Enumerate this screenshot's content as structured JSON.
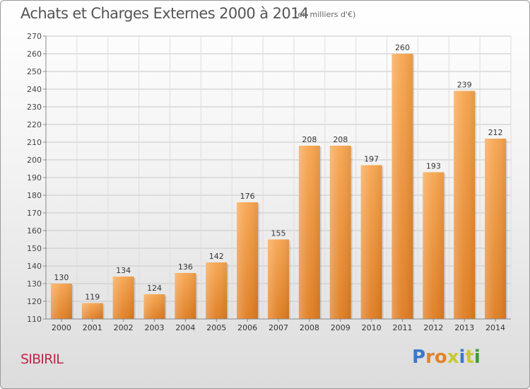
{
  "header": {
    "title": "Achats et Charges Externes 2000 à 2014",
    "subtitle": "(en milliers d'€)"
  },
  "footer": {
    "commune": "SIBIRIL",
    "logo_text": "Proxiti",
    "logo_letters": [
      {
        "char": "P",
        "color": "#3a78c9"
      },
      {
        "char": "r",
        "color": "#e0842a"
      },
      {
        "char": "o",
        "color": "#e0842a"
      },
      {
        "char": "x",
        "color": "#c8c832"
      },
      {
        "char": "i",
        "color": "#3a78c9"
      },
      {
        "char": "t",
        "color": "#c8c832"
      },
      {
        "char": "i",
        "color": "#3a9a3a"
      }
    ]
  },
  "chart_data": {
    "type": "bar",
    "title": "Achats et Charges Externes 2000 à 2014",
    "subtitle": "(en milliers d'€)",
    "categories": [
      "2000",
      "2001",
      "2002",
      "2003",
      "2004",
      "2005",
      "2006",
      "2007",
      "2008",
      "2009",
      "2010",
      "2011",
      "2012",
      "2013",
      "2014"
    ],
    "values": [
      130,
      119,
      134,
      124,
      136,
      142,
      176,
      155,
      208,
      208,
      197,
      260,
      193,
      239,
      212
    ],
    "ylim": [
      110,
      270
    ],
    "yticks": [
      110,
      120,
      130,
      140,
      150,
      160,
      170,
      180,
      190,
      200,
      210,
      220,
      230,
      240,
      250,
      260,
      270
    ],
    "grid": true,
    "bar_color_light": "#f7a650",
    "bar_color_dark": "#e07d22",
    "data_labels": true
  }
}
